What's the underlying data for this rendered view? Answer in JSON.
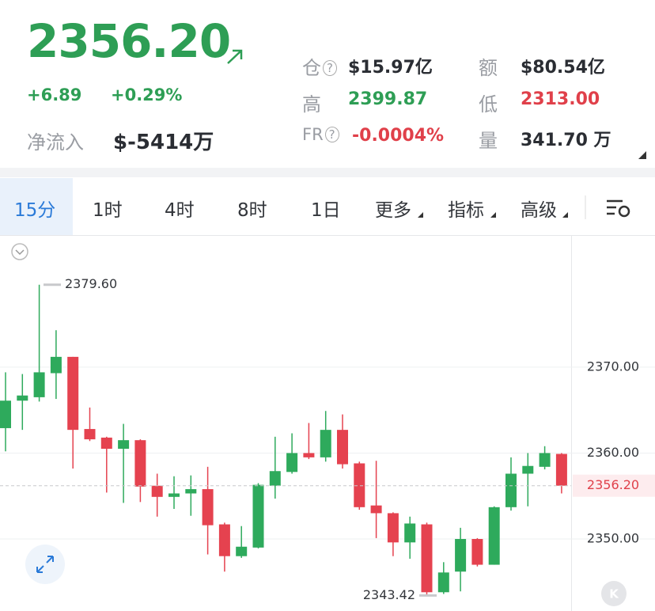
{
  "header": {
    "price": "2356.20",
    "change": "+6.89",
    "change_pct": "+0.29%",
    "net_flow_label": "净流入",
    "net_flow": "$-5414万",
    "stats": [
      {
        "label": "仓",
        "value": "$15.97亿"
      },
      {
        "label": "额",
        "value": "$80.54亿"
      },
      {
        "label": "高",
        "value": "2399.87"
      },
      {
        "label": "低",
        "value": "2313.00"
      },
      {
        "label": "FR",
        "value": "-0.0004%"
      },
      {
        "label": "量",
        "value": "341.70 万"
      }
    ]
  },
  "tabs": [
    "15分",
    "1时",
    "4时",
    "8时",
    "1日",
    "更多",
    "指标",
    "高级"
  ],
  "chart_data": {
    "type": "candlestick",
    "open": [
      2362.9,
      2366.1,
      2366.5,
      2369.3,
      2371.2,
      2362.8,
      2361.8,
      2360.5,
      2361.5,
      2356.2,
      2354.9,
      2355.3,
      2355.8,
      2351.7,
      2348.0,
      2349.0,
      2356.2,
      2357.8,
      2360.0,
      2359.5,
      2362.7,
      2358.8,
      2353.9,
      2353.0,
      2349.6,
      2351.7,
      2343.8,
      2346.2,
      2350.0,
      2347.0,
      2353.7,
      2357.6,
      2358.4,
      2359.9
    ],
    "high": [
      2369.4,
      2369.2,
      2379.6,
      2374.3,
      2371.2,
      2365.3,
      2361.9,
      2363.4,
      2361.6,
      2357.6,
      2357.3,
      2357.4,
      2358.4,
      2351.9,
      2351.5,
      2356.5,
      2361.9,
      2362.3,
      2363.5,
      2364.9,
      2364.5,
      2359.0,
      2359.1,
      2353.1,
      2352.6,
      2351.9,
      2347.3,
      2351.3,
      2350.1,
      2353.8,
      2359.5,
      2360.0,
      2360.8,
      2360.0
    ],
    "low": [
      2360.2,
      2362.7,
      2366.0,
      2366.3,
      2358.2,
      2361.4,
      2355.4,
      2354.2,
      2354.3,
      2352.6,
      2353.5,
      2352.7,
      2348.2,
      2346.2,
      2347.8,
      2348.9,
      2354.7,
      2357.6,
      2359.3,
      2359.0,
      2358.2,
      2353.4,
      2350.1,
      2348.0,
      2347.7,
      2343.42,
      2343.6,
      2343.9,
      2346.8,
      2347.0,
      2353.3,
      2353.8,
      2358.1,
      2355.3
    ],
    "close": [
      2366.1,
      2366.7,
      2369.4,
      2371.2,
      2362.7,
      2361.6,
      2360.5,
      2361.5,
      2356.1,
      2354.9,
      2355.3,
      2355.8,
      2351.6,
      2348.0,
      2349.1,
      2356.3,
      2357.9,
      2360.0,
      2359.5,
      2362.7,
      2358.7,
      2353.7,
      2353.0,
      2349.6,
      2351.8,
      2343.8,
      2346.1,
      2350.0,
      2347.0,
      2353.7,
      2357.6,
      2358.5,
      2360.0,
      2356.2
    ],
    "up_color": "#2eaa5c",
    "down_color": "#e5424f",
    "ylim": [
      2341.8,
      2385.1
    ],
    "yticks": [
      {
        "value": 2350,
        "label": "2350.00"
      },
      {
        "value": 2360,
        "label": "2360.00"
      },
      {
        "value": 2370,
        "label": "2370.00"
      }
    ],
    "grid": true,
    "last_price": {
      "value": 2356.2,
      "label": "2356.20"
    },
    "max_marker": {
      "value": 2379.6,
      "label": "2379.60"
    },
    "min_marker": {
      "value": 2343.42,
      "label": "2343.42"
    }
  }
}
